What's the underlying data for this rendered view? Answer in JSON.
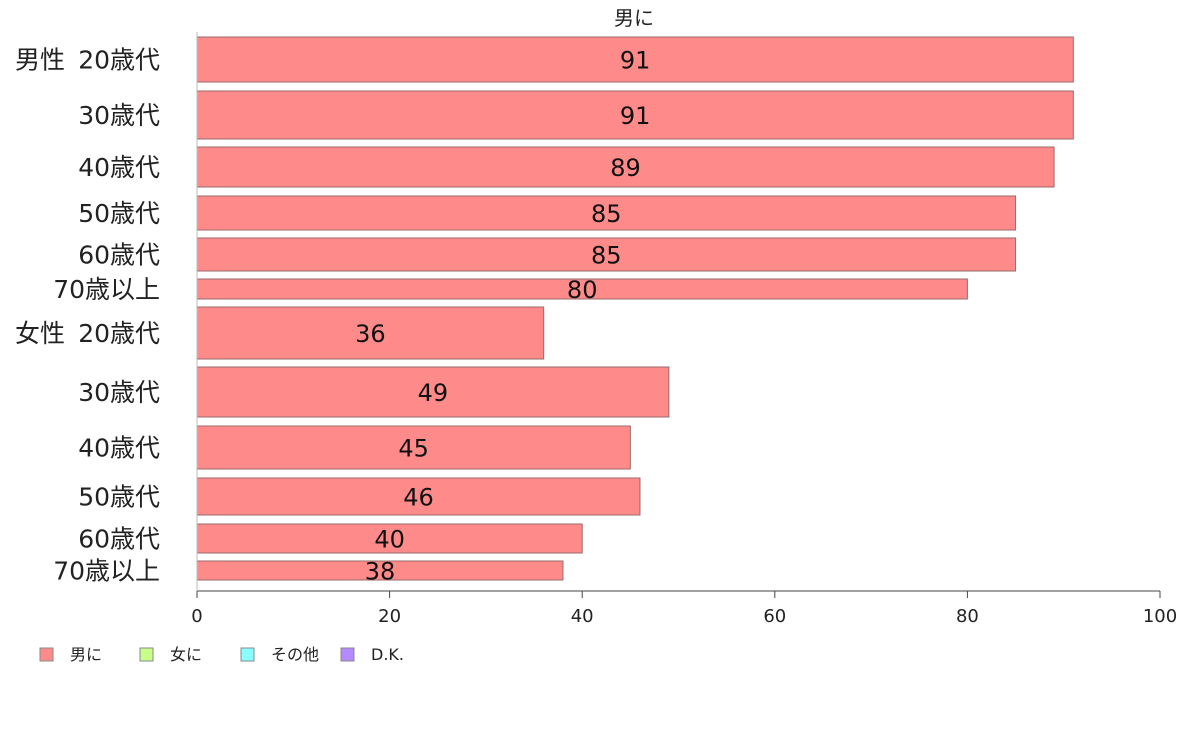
{
  "chart_data": {
    "type": "bar",
    "orientation": "horizontal",
    "title": "男に",
    "groups": [
      {
        "name": "男性",
        "categories": [
          "20歳代",
          "30歳代",
          "40歳代",
          "50歳代",
          "60歳代",
          "70歳以上"
        ],
        "values": [
          91,
          91,
          89,
          85,
          85,
          80
        ]
      },
      {
        "name": "女性",
        "categories": [
          "20歳代",
          "30歳代",
          "40歳代",
          "50歳代",
          "60歳代",
          "70歳以上"
        ],
        "values": [
          36,
          49,
          45,
          46,
          40,
          38
        ]
      }
    ],
    "series": [
      {
        "name": "男に",
        "color": "#ff8a8a"
      }
    ],
    "legend": [
      {
        "label": "男に",
        "color": "#ff8a8a"
      },
      {
        "label": "女に",
        "color": "#c8ff8a"
      },
      {
        "label": "その他",
        "color": "#8affff"
      },
      {
        "label": "D.K.",
        "color": "#b58aff"
      }
    ],
    "xlim": [
      0,
      100
    ],
    "xticks": [
      0,
      20,
      40,
      60,
      80,
      100
    ],
    "legend_position": "bottom-left",
    "grid": false
  }
}
